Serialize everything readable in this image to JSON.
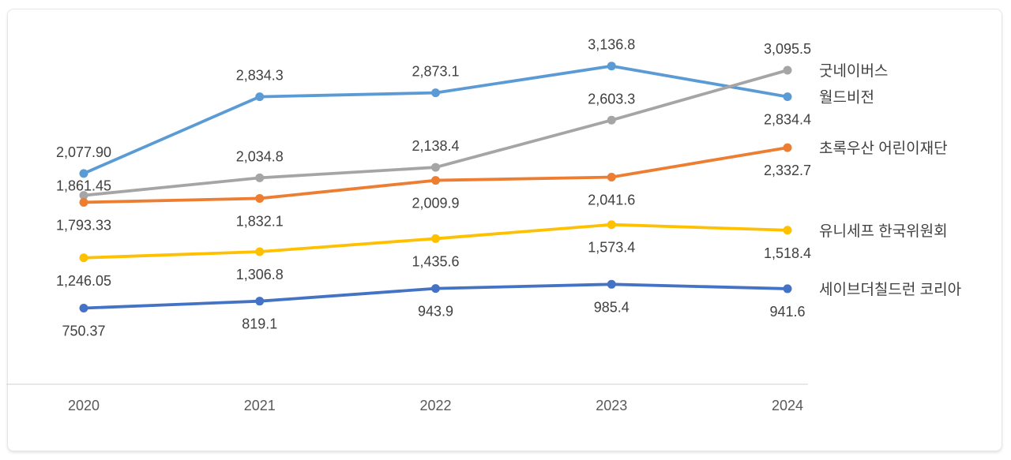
{
  "page": {
    "background_color": "#ffffff",
    "card_border_color": "#e6e6e6"
  },
  "chart_data": {
    "type": "line",
    "title": "",
    "x_categories": [
      "2020",
      "2021",
      "2022",
      "2023",
      "2024"
    ],
    "ylim": [
      0,
      3500
    ],
    "grid": false,
    "axis_line_color": "#d9d9d9",
    "data_label_color": "#404040",
    "tick_label_color": "#595959",
    "series_name_color": "#404040",
    "legend_position": "end-of-line",
    "series": [
      {
        "name": "월드비전",
        "color": "#5B9BD5",
        "values": [
          2077.9,
          2834.3,
          2873.1,
          3136.8,
          2834.4
        ],
        "labels": [
          "2,077.90",
          "2,834.3",
          "2,873.1",
          "3,136.8",
          "2,834.4"
        ],
        "label_sides": [
          "above",
          "above",
          "above",
          "above",
          "below"
        ],
        "label_dy": [
          0,
          0,
          0,
          0,
          0
        ]
      },
      {
        "name": "굿네이버스",
        "color": "#A5A5A5",
        "values": [
          1861.45,
          2034.8,
          2138.4,
          2603.3,
          3095.5
        ],
        "labels": [
          "1,861.45",
          "2,034.8",
          "2,138.4",
          "2,603.3",
          "3,095.5"
        ],
        "label_sides": [
          "above",
          "above",
          "above",
          "above",
          "above"
        ],
        "label_dy": [
          15,
          0,
          0,
          0,
          0
        ]
      },
      {
        "name": "초록우산 어린이재단",
        "color": "#ED7D31",
        "values": [
          1793.33,
          1832.1,
          2009.9,
          2041.6,
          2332.7
        ],
        "labels": [
          "1,793.33",
          "1,832.1",
          "2,009.9",
          "2,041.6",
          "2,332.7"
        ],
        "label_sides": [
          "below",
          "below",
          "below",
          "below",
          "below"
        ],
        "label_dy": [
          0,
          0,
          0,
          0,
          0
        ]
      },
      {
        "name": "유니세프 한국위원회",
        "color": "#FFC000",
        "values": [
          1246.05,
          1306.8,
          1435.6,
          1573.4,
          1518.4
        ],
        "labels": [
          "1,246.05",
          "1,306.8",
          "1,435.6",
          "1,573.4",
          "1,518.4"
        ],
        "label_sides": [
          "below",
          "below",
          "below",
          "below",
          "below"
        ],
        "label_dy": [
          0,
          0,
          0,
          0,
          0
        ]
      },
      {
        "name": "세이브더칠드런 코리아",
        "color": "#4472C4",
        "values": [
          750.37,
          819.1,
          943.9,
          985.4,
          941.6
        ],
        "labels": [
          "750.37",
          "819.1",
          "943.9",
          "985.4",
          "941.6"
        ],
        "label_sides": [
          "below",
          "below",
          "below",
          "below",
          "below"
        ],
        "label_dy": [
          0,
          0,
          0,
          0,
          0
        ]
      }
    ]
  }
}
